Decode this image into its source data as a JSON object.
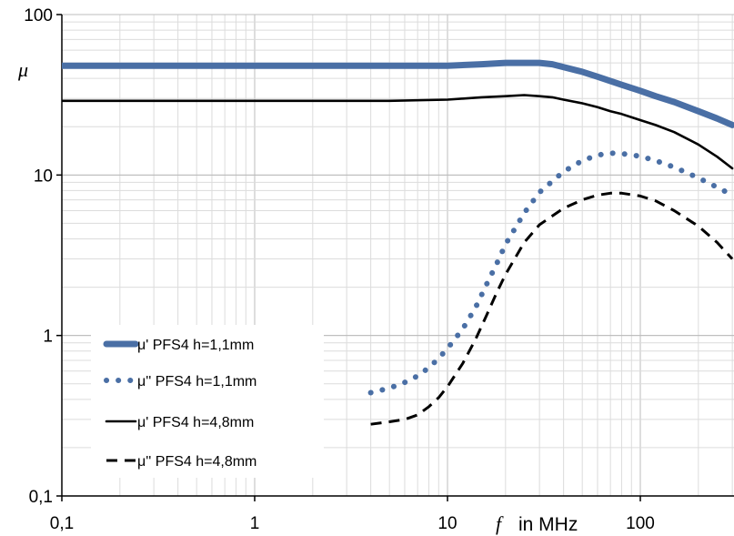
{
  "chart_data": {
    "type": "line",
    "x_scale": "log",
    "y_scale": "log",
    "xlim": [
      0.1,
      300
    ],
    "ylim": [
      0.1,
      100
    ],
    "x_ticks": [
      "0,1",
      "1",
      "10",
      "100"
    ],
    "y_ticks": [
      "0,1",
      "1",
      "10",
      "100"
    ],
    "ylabel": "μ",
    "xlabel_symbol": "f",
    "xlabel_unit": "in MHz",
    "grid": true,
    "legend_position": "bottom-left",
    "series": [
      {
        "name": "μ' PFS4 h=1,1mm",
        "color": "#4a6fa5",
        "style": "thick-solid",
        "x": [
          0.1,
          0.2,
          0.5,
          1,
          2,
          5,
          10,
          15,
          20,
          25,
          30,
          35,
          40,
          50,
          60,
          70,
          80,
          100,
          120,
          150,
          200,
          250,
          300
        ],
        "y": [
          48,
          48,
          48,
          48,
          48,
          48,
          48,
          49,
          50,
          50,
          50,
          49,
          47,
          44,
          41,
          38.5,
          36.5,
          33.5,
          31,
          28.5,
          25,
          22.5,
          20.5
        ]
      },
      {
        "name": "μ'' PFS4 h=1,1mm",
        "color": "#4a6fa5",
        "style": "dotted",
        "x": [
          4,
          5,
          6,
          7,
          8,
          9,
          10,
          12,
          14,
          16,
          18,
          20,
          25,
          30,
          40,
          50,
          60,
          70,
          80,
          100,
          120,
          150,
          200,
          250,
          300
        ],
        "y": [
          0.44,
          0.47,
          0.51,
          0.56,
          0.63,
          0.72,
          0.83,
          1.1,
          1.5,
          2.1,
          2.8,
          3.7,
          5.8,
          7.8,
          10.5,
          12.3,
          13.3,
          13.7,
          13.6,
          13.1,
          12.3,
          11.2,
          9.6,
          8.4,
          7.5
        ]
      },
      {
        "name": "μ' PFS4 h=4,8mm",
        "color": "#000000",
        "style": "solid",
        "x": [
          0.1,
          0.2,
          0.5,
          1,
          2,
          5,
          10,
          15,
          20,
          25,
          30,
          35,
          40,
          50,
          60,
          70,
          80,
          100,
          120,
          150,
          200,
          250,
          300
        ],
        "y": [
          29,
          29,
          29,
          29,
          29,
          29,
          29.5,
          30.5,
          31,
          31.5,
          31,
          30.5,
          29.5,
          28,
          26.5,
          25,
          24,
          22,
          20.5,
          18.5,
          15.5,
          13,
          11
        ]
      },
      {
        "name": "μ'' PFS4 h=4,8mm",
        "color": "#000000",
        "style": "dashed",
        "x": [
          4,
          5,
          6,
          7,
          8,
          9,
          10,
          12,
          14,
          16,
          18,
          20,
          25,
          30,
          40,
          50,
          60,
          70,
          80,
          100,
          120,
          150,
          200,
          250,
          300
        ],
        "y": [
          0.28,
          0.29,
          0.3,
          0.32,
          0.36,
          0.41,
          0.48,
          0.67,
          0.95,
          1.35,
          1.85,
          2.4,
          3.8,
          4.9,
          6.2,
          7.0,
          7.5,
          7.7,
          7.7,
          7.4,
          6.9,
          6.0,
          4.8,
          3.8,
          3.0
        ]
      }
    ]
  }
}
